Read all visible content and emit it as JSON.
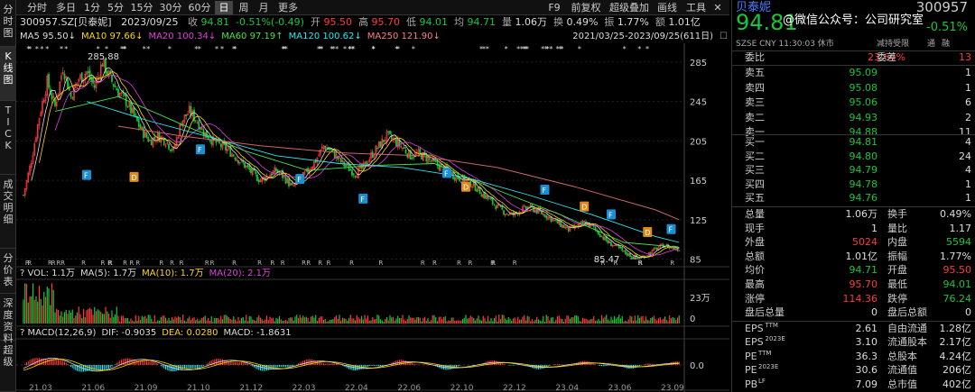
{
  "left_tabs": [
    "分时图",
    "K线图",
    "TICK",
    "成交明细",
    "分价表",
    "深度资料",
    "超级"
  ],
  "toolbar": {
    "periods": [
      "分时",
      "多日",
      "1分",
      "5分",
      "15分",
      "30分",
      "60分",
      "日",
      "周",
      "月",
      "更多"
    ],
    "active_period": "日",
    "actions": [
      "F9",
      "前复权",
      "超级叠加",
      "画线",
      "工具"
    ]
  },
  "quote_line": {
    "code_name": "300957.SZ[贝泰妮]",
    "date": "2023/09/25",
    "close_label": "收",
    "close": "94.81",
    "change": "-0.51%(-0.49)",
    "open_label": "开",
    "open": "95.50",
    "high_label": "高",
    "high": "95.70",
    "low_label": "低",
    "low": "94.01",
    "avg_label": "均",
    "avg": "94.71",
    "vol_label": "量",
    "vol": "1.06万",
    "turnover_label": "换",
    "turnover": "0.49%",
    "amp_label": "振",
    "amp": "1.77%",
    "amount_label": "额",
    "amount": "1.01亿"
  },
  "ma_line": {
    "items": [
      {
        "label": "MA5",
        "value": "95.50↓",
        "color": "#dddddd"
      },
      {
        "label": "MA10",
        "value": "97.66↓",
        "color": "#ffd700"
      },
      {
        "label": "MA20",
        "value": "100.34↓",
        "color": "#e040e0"
      },
      {
        "label": "MA60",
        "value": "97.19↑",
        "color": "#4ae14a"
      },
      {
        "label": "MA120",
        "value": "100.62↓",
        "color": "#2ee6f0"
      },
      {
        "label": "MA250",
        "value": "121.90↓",
        "color": "#ff7f7f"
      }
    ],
    "range": "2021/03/25-2023/09/25(611日)"
  },
  "price_axis": [
    "285",
    "245",
    "205",
    "165",
    "125",
    "85"
  ],
  "price_marks": {
    "high": "285.88",
    "low": "85.47"
  },
  "vol_line": {
    "label": "VOL: 1.1万",
    "ma5": "MA(5): 1.7万",
    "ma10": "MA(10): 1.7万",
    "ma20": "MA(20): 2.1万"
  },
  "vol_axis": [
    "23万",
    "0"
  ],
  "macd_line": {
    "label": "MACD(12,26,9)",
    "dif": "DIF: -0.9035",
    "dea": "DEA: 0.0280",
    "macd": "MACD: -1.8631"
  },
  "macd_axis": [
    "0.0"
  ],
  "x_axis": [
    "21.03",
    "21.06",
    "21.09",
    "21.10",
    "21.12",
    "22.03",
    "22.04",
    "22.06",
    "22.10",
    "22.12",
    "23.04",
    "23.06",
    "23.09"
  ],
  "right": {
    "name": "贝泰妮",
    "code": "300957",
    "price": "94.81",
    "change_pct": "-0.51%",
    "watermark": "@微信公众号：公司研究室",
    "market_line": "SZSE  CNY  11:30:03  休市",
    "tags": [
      "减持受限",
      "通",
      "融"
    ],
    "weibi_label": "委比",
    "weibi": "23.64%",
    "weicha_label": "委差",
    "weicha": "13",
    "asks": [
      {
        "label": "卖五",
        "price": "95.09",
        "vol": "1"
      },
      {
        "label": "卖四",
        "price": "95.08",
        "vol": "1"
      },
      {
        "label": "卖三",
        "price": "95.06",
        "vol": "6"
      },
      {
        "label": "卖二",
        "price": "94.93",
        "vol": "2"
      },
      {
        "label": "卖一",
        "price": "94.88",
        "vol": "11"
      }
    ],
    "bids": [
      {
        "label": "买一",
        "price": "94.81",
        "vol": "4"
      },
      {
        "label": "买二",
        "price": "94.80",
        "vol": "24"
      },
      {
        "label": "买三",
        "price": "94.79",
        "vol": "4"
      },
      {
        "label": "买四",
        "price": "94.78",
        "vol": "1"
      },
      {
        "label": "买五",
        "price": "94.76",
        "vol": "1"
      }
    ],
    "stats": [
      {
        "l1": "总量",
        "v1": "1.06万",
        "c1": "#dddddd",
        "l2": "换手",
        "v2": "0.49%",
        "c2": "#dddddd"
      },
      {
        "l1": "现手",
        "v1": "1",
        "c1": "#dddddd",
        "l2": "量比",
        "v2": "1.17",
        "c2": "#dddddd"
      },
      {
        "l1": "外盘",
        "v1": "5024",
        "c1": "#ff3b3b",
        "l2": "内盘",
        "v2": "5594",
        "c2": "#17c73a"
      },
      {
        "l1": "总额",
        "v1": "1.01亿",
        "c1": "#dddddd",
        "l2": "振幅",
        "v2": "1.77%",
        "c2": "#dddddd"
      },
      {
        "l1": "均价",
        "v1": "94.71",
        "c1": "#17c73a",
        "l2": "开盘",
        "v2": "95.50",
        "c2": "#ff3b3b"
      },
      {
        "l1": "最高",
        "v1": "95.70",
        "c1": "#ff3b3b",
        "l2": "最低",
        "v2": "94.01",
        "c2": "#17c73a"
      },
      {
        "l1": "涨停",
        "v1": "114.36",
        "c1": "#ff3b3b",
        "l2": "跌停",
        "v2": "76.24",
        "c2": "#17c73a"
      },
      {
        "l1": "盘后总量",
        "v1": "0",
        "c1": "#dddddd",
        "l2": "盘后总额",
        "v2": "0",
        "c2": "#dddddd"
      }
    ],
    "fundamentals": [
      {
        "l1": "EPS",
        "s1": "TTM",
        "v1": "2.61",
        "l2": "自由流通",
        "v2": "1.28亿"
      },
      {
        "l1": "EPS",
        "s1": "2023E",
        "v1": "3.10",
        "l2": "流通股本",
        "v2": "2.17亿"
      },
      {
        "l1": "PE",
        "s1": "TTM",
        "v1": "36.3",
        "l2": "总股本",
        "v2": "4.24亿"
      },
      {
        "l1": "PE",
        "s1": "2023E",
        "v1": "30.6",
        "l2": "流通值",
        "v2": "206亿"
      },
      {
        "l1": "PB",
        "s1": "LF",
        "v1": "7.09",
        "l2": "总市值",
        "v2": "402亿"
      }
    ]
  },
  "chart_data": {
    "type": "candlestick",
    "title": "300957.SZ[贝泰妮] 日K线 前复权",
    "x_ticks": [
      "21.03",
      "21.06",
      "21.09",
      "21.10",
      "21.12",
      "22.03",
      "22.04",
      "22.06",
      "22.10",
      "22.12",
      "23.04",
      "23.06",
      "23.09"
    ],
    "ylim": [
      80,
      295
    ],
    "price_trend_close": [
      [
        0,
        150
      ],
      [
        5,
        185
      ],
      [
        10,
        230
      ],
      [
        15,
        265
      ],
      [
        20,
        240
      ],
      [
        25,
        280
      ],
      [
        30,
        250
      ],
      [
        35,
        268
      ],
      [
        40,
        275
      ],
      [
        45,
        260
      ],
      [
        50,
        285
      ],
      [
        55,
        268
      ],
      [
        60,
        255
      ],
      [
        65,
        245
      ],
      [
        70,
        230
      ],
      [
        75,
        215
      ],
      [
        80,
        205
      ],
      [
        85,
        210
      ],
      [
        90,
        205
      ],
      [
        95,
        195
      ],
      [
        100,
        225
      ],
      [
        105,
        235
      ],
      [
        110,
        225
      ],
      [
        115,
        212
      ],
      [
        120,
        205
      ],
      [
        125,
        200
      ],
      [
        130,
        195
      ],
      [
        135,
        188
      ],
      [
        140,
        180
      ],
      [
        145,
        172
      ],
      [
        150,
        165
      ],
      [
        155,
        170
      ],
      [
        160,
        175
      ],
      [
        165,
        168
      ],
      [
        170,
        158
      ],
      [
        175,
        165
      ],
      [
        180,
        175
      ],
      [
        185,
        185
      ],
      [
        190,
        200
      ],
      [
        195,
        195
      ],
      [
        200,
        185
      ],
      [
        205,
        178
      ],
      [
        210,
        172
      ],
      [
        215,
        178
      ],
      [
        220,
        190
      ],
      [
        225,
        200
      ],
      [
        230,
        210
      ],
      [
        235,
        205
      ],
      [
        240,
        198
      ],
      [
        245,
        190
      ],
      [
        250,
        192
      ],
      [
        255,
        188
      ],
      [
        260,
        182
      ],
      [
        265,
        178
      ],
      [
        270,
        172
      ],
      [
        275,
        168
      ],
      [
        280,
        165
      ],
      [
        285,
        160
      ],
      [
        290,
        152
      ],
      [
        295,
        145
      ],
      [
        300,
        138
      ],
      [
        305,
        132
      ],
      [
        310,
        130
      ],
      [
        315,
        135
      ],
      [
        320,
        138
      ],
      [
        325,
        134
      ],
      [
        330,
        130
      ],
      [
        335,
        125
      ],
      [
        340,
        120
      ],
      [
        345,
        115
      ],
      [
        350,
        118
      ],
      [
        355,
        122
      ],
      [
        360,
        118
      ],
      [
        365,
        110
      ],
      [
        370,
        102
      ],
      [
        375,
        98
      ],
      [
        380,
        92
      ],
      [
        385,
        88
      ],
      [
        390,
        86
      ],
      [
        395,
        90
      ],
      [
        400,
        95
      ],
      [
        405,
        99
      ],
      [
        410,
        97
      ],
      [
        415,
        95
      ]
    ],
    "ma250": [
      [
        60,
        220
      ],
      [
        100,
        210
      ],
      [
        150,
        200
      ],
      [
        200,
        193
      ],
      [
        250,
        190
      ],
      [
        300,
        178
      ],
      [
        350,
        158
      ],
      [
        400,
        135
      ],
      [
        415,
        125
      ]
    ],
    "ma120": [
      [
        40,
        245
      ],
      [
        80,
        225
      ],
      [
        120,
        208
      ],
      [
        160,
        190
      ],
      [
        200,
        182
      ],
      [
        240,
        178
      ],
      [
        280,
        168
      ],
      [
        320,
        150
      ],
      [
        360,
        130
      ],
      [
        400,
        108
      ],
      [
        415,
        102
      ]
    ],
    "ma60": [
      [
        20,
        235
      ],
      [
        60,
        250
      ],
      [
        100,
        222
      ],
      [
        140,
        195
      ],
      [
        180,
        175
      ],
      [
        220,
        180
      ],
      [
        260,
        182
      ],
      [
        300,
        155
      ],
      [
        340,
        130
      ],
      [
        380,
        102
      ],
      [
        415,
        97
      ]
    ],
    "price_high": 285.88,
    "price_low": 85.47,
    "vol_ylim": [
      0,
      230000
    ],
    "macd_dif": -0.9035,
    "macd_dea": 0.028,
    "macd_hist": -1.8631
  }
}
